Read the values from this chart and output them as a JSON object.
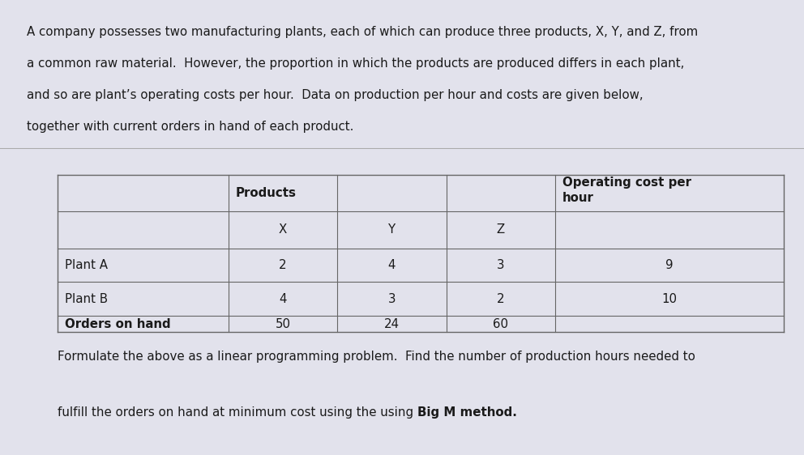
{
  "bg_top": "#ebebeb",
  "bg_bottom": "#e2e2ec",
  "divider_color": "#aaaaaa",
  "table_line_color": "#666666",
  "text_color": "#1a1a1a",
  "font_family": "DejaVu Sans",
  "para_fontsize": 10.8,
  "table_fontsize": 10.8,
  "footer_fontsize": 10.8,
  "paragraph_lines": [
    "A company possesses two manufacturing plants, each of which can produce three products, X, Y, and Z, from",
    "a common raw material.  However, the proportion in which the products are produced differs in each plant,",
    "and so are plant’s operating costs per hour.  Data on production per hour and costs are given below,",
    "together with current orders in hand of each product."
  ],
  "col_headers": [
    "X",
    "Y",
    "Z"
  ],
  "table_rows": [
    [
      "Plant A",
      "2",
      "4",
      "3",
      "9"
    ],
    [
      "Plant B",
      "4",
      "3",
      "2",
      "10"
    ],
    [
      "Orders on hand",
      "50",
      "24",
      "60",
      ""
    ]
  ],
  "footer_line1": "Formulate the above as a linear programming problem.  Find the number of production hours needed to",
  "footer_line2_normal": "fulfill the orders on hand at minimum cost using the using ",
  "footer_line2_bold": "Big M method."
}
